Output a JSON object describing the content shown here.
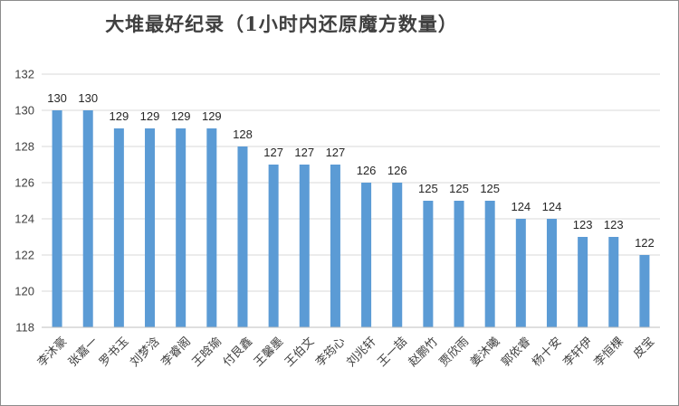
{
  "chart_data": {
    "type": "bar",
    "title": "大堆最好纪录（1小时内还原魔方数量）",
    "xlabel": "",
    "ylabel": "",
    "categories": [
      "李沐豪",
      "张嘉一",
      "罗书玉",
      "刘梦浛",
      "李睿阁",
      "王晗瑜",
      "付艮鑫",
      "王馨墨",
      "王伯文",
      "李筠心",
      "刘兆轩",
      "王一喆",
      "赵鹏竹",
      "贾欣雨",
      "姜沐曦",
      "郭依睿",
      "杨十安",
      "李轩伊",
      "李恒棵",
      "皮宝"
    ],
    "values": [
      130,
      130,
      129,
      129,
      129,
      129,
      128,
      127,
      127,
      127,
      126,
      126,
      125,
      125,
      125,
      124,
      124,
      123,
      123,
      122
    ],
    "ylim": [
      118,
      132
    ],
    "yticks": [
      118,
      120,
      122,
      124,
      126,
      128,
      130,
      132
    ],
    "grid": true,
    "legend": "none",
    "bar_color": "#5b9bd5"
  }
}
